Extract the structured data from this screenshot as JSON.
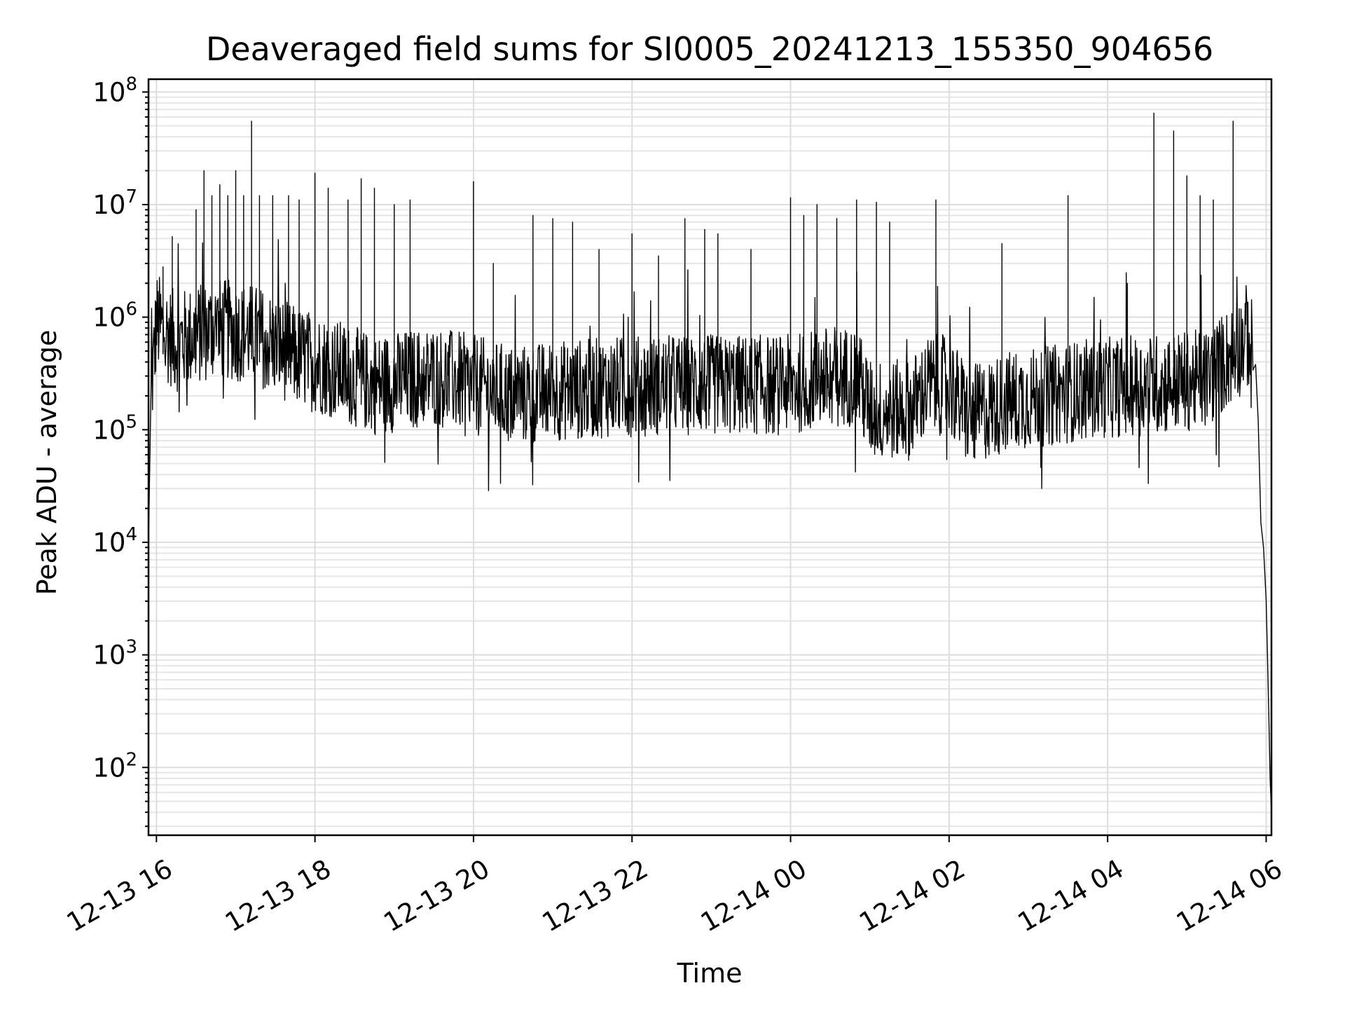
{
  "chart_data": {
    "type": "line",
    "title": "Deaveraged field sums for SI0005_20241213_155350_904656",
    "xlabel": "Time",
    "ylabel": "Peak ADU - average",
    "yscale": "log",
    "ylim": [
      25,
      130000000
    ],
    "xlim": [
      "12-13 15:54",
      "12-14 06:04"
    ],
    "grid": true,
    "x_ticks": [
      "12-13 16",
      "12-13 18",
      "12-13 20",
      "12-13 22",
      "12-14 00",
      "12-14 02",
      "12-14 04",
      "12-14 06"
    ],
    "y_ticks": [
      {
        "base": "10",
        "exp": "2",
        "value": 100
      },
      {
        "base": "10",
        "exp": "3",
        "value": 1000
      },
      {
        "base": "10",
        "exp": "4",
        "value": 10000
      },
      {
        "base": "10",
        "exp": "5",
        "value": 100000
      },
      {
        "base": "10",
        "exp": "6",
        "value": 1000000
      },
      {
        "base": "10",
        "exp": "7",
        "value": 10000000
      },
      {
        "base": "10",
        "exp": "8",
        "value": 100000000
      }
    ],
    "line_color": "#000000",
    "series": [
      {
        "baseline": [
          [
            "12-13 15:54",
            10000
          ],
          [
            "12-13 15:56",
            200000
          ],
          [
            "12-13 16:00",
            900000
          ],
          [
            "12-13 16:15",
            600000
          ],
          [
            "12-13 16:45",
            800000
          ],
          [
            "12-13 17:15",
            700000
          ],
          [
            "12-13 17:45",
            450000
          ],
          [
            "12-13 18:15",
            350000
          ],
          [
            "12-13 18:45",
            250000
          ],
          [
            "12-13 19:30",
            300000
          ],
          [
            "12-13 20:00",
            250000
          ],
          [
            "12-13 20:30",
            200000
          ],
          [
            "12-13 21:00",
            220000
          ],
          [
            "12-13 21:45",
            240000
          ],
          [
            "12-13 22:30",
            250000
          ],
          [
            "12-13 23:15",
            250000
          ],
          [
            "12-14 00:00",
            250000
          ],
          [
            "12-14 00:30",
            300000
          ],
          [
            "12-14 00:50",
            300000
          ],
          [
            "12-14 01:00",
            150000
          ],
          [
            "12-14 01:30",
            150000
          ],
          [
            "12-14 01:45",
            250000
          ],
          [
            "12-14 02:00",
            250000
          ],
          [
            "12-14 02:15",
            130000
          ],
          [
            "12-14 02:45",
            180000
          ],
          [
            "12-14 03:15",
            200000
          ],
          [
            "12-14 03:45",
            230000
          ],
          [
            "12-14 04:30",
            250000
          ],
          [
            "12-14 05:15",
            280000
          ],
          [
            "12-14 05:40",
            550000
          ],
          [
            "12-14 05:45",
            700000
          ],
          [
            "12-14 05:50",
            500000
          ]
        ],
        "spikes": [
          [
            "12-13 16:05",
            2800000
          ],
          [
            "12-13 16:12",
            5200000
          ],
          [
            "12-13 16:30",
            9000000
          ],
          [
            "12-13 16:36",
            20000000
          ],
          [
            "12-13 16:42",
            12000000
          ],
          [
            "12-13 16:48",
            15000000
          ],
          [
            "12-13 16:54",
            12000000
          ],
          [
            "12-13 17:00",
            20000000
          ],
          [
            "12-13 17:06",
            12000000
          ],
          [
            "12-13 17:12",
            55000000
          ],
          [
            "12-13 17:18",
            12000000
          ],
          [
            "12-13 17:28",
            12000000
          ],
          [
            "12-13 17:40",
            12000000
          ],
          [
            "12-13 17:48",
            11000000
          ],
          [
            "12-13 18:00",
            19000000
          ],
          [
            "12-13 18:10",
            14000000
          ],
          [
            "12-13 18:25",
            11000000
          ],
          [
            "12-13 18:35",
            17000000
          ],
          [
            "12-13 18:45",
            14000000
          ],
          [
            "12-13 19:00",
            10000000
          ],
          [
            "12-13 19:12",
            11000000
          ],
          [
            "12-13 20:00",
            16000000
          ],
          [
            "12-13 20:15",
            3000000
          ],
          [
            "12-13 20:45",
            8000000
          ],
          [
            "12-13 21:00",
            7500000
          ],
          [
            "12-13 21:15",
            7000000
          ],
          [
            "12-13 21:35",
            4000000
          ],
          [
            "12-13 22:00",
            5500000
          ],
          [
            "12-13 22:20",
            3500000
          ],
          [
            "12-13 22:40",
            7500000
          ],
          [
            "12-13 22:55",
            6000000
          ],
          [
            "12-13 23:05",
            5500000
          ],
          [
            "12-13 23:30",
            4000000
          ],
          [
            "12-14 00:00",
            11500000
          ],
          [
            "12-14 00:10",
            8000000
          ],
          [
            "12-14 00:20",
            10000000
          ],
          [
            "12-14 00:35",
            7500000
          ],
          [
            "12-14 00:50",
            11000000
          ],
          [
            "12-14 01:05",
            10500000
          ],
          [
            "12-14 01:15",
            7000000
          ],
          [
            "12-14 01:50",
            11000000
          ],
          [
            "12-14 02:40",
            4500000
          ],
          [
            "12-14 03:30",
            12000000
          ],
          [
            "12-14 04:15",
            2000000
          ],
          [
            "12-14 04:35",
            65000000
          ],
          [
            "12-14 04:50",
            45000000
          ],
          [
            "12-14 05:00",
            18000000
          ],
          [
            "12-14 05:10",
            12000000
          ],
          [
            "12-14 05:20",
            11000000
          ],
          [
            "12-14 05:35",
            55000000
          ]
        ],
        "tail": [
          [
            "12-14 05:52",
            380000
          ],
          [
            "12-14 05:54",
            120000
          ],
          [
            "12-14 05:56",
            15000
          ],
          [
            "12-14 05:58",
            9000
          ],
          [
            "12-14 06:00",
            3000
          ],
          [
            "12-14 06:01",
            1000
          ],
          [
            "12-14 06:02",
            300
          ],
          [
            "12-14 06:03",
            80
          ],
          [
            "12-14 06:04",
            40
          ]
        ]
      }
    ]
  }
}
